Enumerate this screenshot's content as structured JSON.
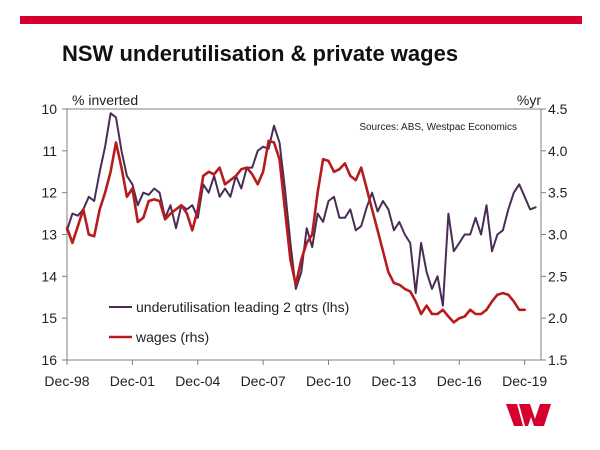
{
  "header": {
    "title": "NSW underutilisation & private wages"
  },
  "brand": {
    "logo": "westpac-w-logo",
    "color": "#d5002b"
  },
  "chart_data": {
    "type": "line",
    "title": "NSW underutilisation & private wages",
    "source": "Sources: ABS, Westpac Economics",
    "y_left": {
      "label": "% inverted",
      "range": [
        10,
        16
      ],
      "inverted": true,
      "ticks": [
        10,
        11,
        12,
        13,
        14,
        15,
        16
      ]
    },
    "y_right": {
      "label": "%yr",
      "range": [
        1.5,
        4.5
      ],
      "ticks": [
        "1.5",
        "2.0",
        "2.5",
        "3.0",
        "3.5",
        "4.0",
        "4.5"
      ]
    },
    "x_range": [
      1998.92,
      2020.67
    ],
    "x_ticks": [
      {
        "label": "Dec-98",
        "value": 1998.92
      },
      {
        "label": "Dec-01",
        "value": 2001.92
      },
      {
        "label": "Dec-04",
        "value": 2004.92
      },
      {
        "label": "Dec-07",
        "value": 2007.92
      },
      {
        "label": "Dec-10",
        "value": 2010.92
      },
      {
        "label": "Dec-13",
        "value": 2013.92
      },
      {
        "label": "Dec-16",
        "value": 2016.92
      },
      {
        "label": "Dec-19",
        "value": 2019.92
      }
    ],
    "grid": false,
    "legend_position": "bottom-left",
    "series": [
      {
        "name": "underutilisation leading 2 qtrs (lhs)",
        "axis": "left",
        "color": "#4a2d55",
        "points": [
          [
            1998.92,
            12.9
          ],
          [
            1999.17,
            12.5
          ],
          [
            1999.42,
            12.55
          ],
          [
            1999.67,
            12.4
          ],
          [
            1999.92,
            12.1
          ],
          [
            2000.17,
            12.2
          ],
          [
            2000.42,
            11.5
          ],
          [
            2000.67,
            10.9
          ],
          [
            2000.92,
            10.1
          ],
          [
            2001.17,
            10.2
          ],
          [
            2001.42,
            11.0
          ],
          [
            2001.67,
            11.6
          ],
          [
            2001.92,
            11.8
          ],
          [
            2002.17,
            12.3
          ],
          [
            2002.42,
            12.0
          ],
          [
            2002.67,
            12.05
          ],
          [
            2002.92,
            11.9
          ],
          [
            2003.17,
            12.0
          ],
          [
            2003.42,
            12.6
          ],
          [
            2003.67,
            12.3
          ],
          [
            2003.92,
            12.85
          ],
          [
            2004.17,
            12.3
          ],
          [
            2004.42,
            12.4
          ],
          [
            2004.67,
            12.3
          ],
          [
            2004.92,
            12.6
          ],
          [
            2005.17,
            11.8
          ],
          [
            2005.42,
            12.0
          ],
          [
            2005.67,
            11.6
          ],
          [
            2005.92,
            12.1
          ],
          [
            2006.17,
            11.9
          ],
          [
            2006.42,
            12.1
          ],
          [
            2006.67,
            11.6
          ],
          [
            2006.92,
            11.9
          ],
          [
            2007.17,
            11.4
          ],
          [
            2007.42,
            11.4
          ],
          [
            2007.67,
            11.0
          ],
          [
            2007.92,
            10.9
          ],
          [
            2008.17,
            10.95
          ],
          [
            2008.42,
            10.4
          ],
          [
            2008.67,
            10.8
          ],
          [
            2008.92,
            11.9
          ],
          [
            2009.17,
            13.2
          ],
          [
            2009.42,
            14.3
          ],
          [
            2009.67,
            13.9
          ],
          [
            2009.92,
            12.85
          ],
          [
            2010.17,
            13.3
          ],
          [
            2010.42,
            12.5
          ],
          [
            2010.67,
            12.7
          ],
          [
            2010.92,
            12.2
          ],
          [
            2011.17,
            12.1
          ],
          [
            2011.42,
            12.6
          ],
          [
            2011.67,
            12.6
          ],
          [
            2011.92,
            12.4
          ],
          [
            2012.17,
            12.9
          ],
          [
            2012.42,
            12.8
          ],
          [
            2012.67,
            12.35
          ],
          [
            2012.92,
            12.0
          ],
          [
            2013.17,
            12.45
          ],
          [
            2013.42,
            12.2
          ],
          [
            2013.67,
            12.4
          ],
          [
            2013.92,
            12.9
          ],
          [
            2014.17,
            12.7
          ],
          [
            2014.42,
            13.0
          ],
          [
            2014.67,
            13.2
          ],
          [
            2014.92,
            14.4
          ],
          [
            2015.17,
            13.2
          ],
          [
            2015.42,
            13.9
          ],
          [
            2015.67,
            14.3
          ],
          [
            2015.92,
            14.0
          ],
          [
            2016.17,
            14.7
          ],
          [
            2016.42,
            12.5
          ],
          [
            2016.67,
            13.4
          ],
          [
            2016.92,
            13.2
          ],
          [
            2017.17,
            13.0
          ],
          [
            2017.42,
            13.0
          ],
          [
            2017.67,
            12.6
          ],
          [
            2017.92,
            13.0
          ],
          [
            2018.17,
            12.3
          ],
          [
            2018.42,
            13.4
          ],
          [
            2018.67,
            13.0
          ],
          [
            2018.92,
            12.9
          ],
          [
            2019.17,
            12.4
          ],
          [
            2019.42,
            12.0
          ],
          [
            2019.67,
            11.8
          ],
          [
            2019.92,
            12.1
          ],
          [
            2020.17,
            12.4
          ],
          [
            2020.42,
            12.35
          ]
        ]
      },
      {
        "name": "wages (rhs)",
        "axis": "right",
        "color": "#b71c1c",
        "points": [
          [
            1998.92,
            3.08
          ],
          [
            1999.17,
            2.9
          ],
          [
            1999.42,
            3.1
          ],
          [
            1999.67,
            3.3
          ],
          [
            1999.92,
            3.0
          ],
          [
            2000.17,
            2.98
          ],
          [
            2000.42,
            3.3
          ],
          [
            2000.67,
            3.5
          ],
          [
            2000.92,
            3.75
          ],
          [
            2001.17,
            4.1
          ],
          [
            2001.42,
            3.8
          ],
          [
            2001.67,
            3.45
          ],
          [
            2001.92,
            3.55
          ],
          [
            2002.17,
            3.15
          ],
          [
            2002.42,
            3.2
          ],
          [
            2002.67,
            3.4
          ],
          [
            2002.92,
            3.42
          ],
          [
            2003.17,
            3.4
          ],
          [
            2003.42,
            3.18
          ],
          [
            2003.67,
            3.25
          ],
          [
            2003.92,
            3.3
          ],
          [
            2004.17,
            3.35
          ],
          [
            2004.42,
            3.25
          ],
          [
            2004.67,
            3.05
          ],
          [
            2004.92,
            3.3
          ],
          [
            2005.17,
            3.7
          ],
          [
            2005.42,
            3.75
          ],
          [
            2005.67,
            3.72
          ],
          [
            2005.92,
            3.8
          ],
          [
            2006.17,
            3.6
          ],
          [
            2006.42,
            3.65
          ],
          [
            2006.67,
            3.7
          ],
          [
            2006.92,
            3.78
          ],
          [
            2007.17,
            3.8
          ],
          [
            2007.42,
            3.72
          ],
          [
            2007.67,
            3.6
          ],
          [
            2007.92,
            3.75
          ],
          [
            2008.17,
            4.12
          ],
          [
            2008.42,
            4.1
          ],
          [
            2008.67,
            3.9
          ],
          [
            2008.92,
            3.3
          ],
          [
            2009.17,
            2.7
          ],
          [
            2009.42,
            2.4
          ],
          [
            2009.67,
            2.7
          ],
          [
            2009.92,
            2.9
          ],
          [
            2010.17,
            3.0
          ],
          [
            2010.42,
            3.5
          ],
          [
            2010.67,
            3.9
          ],
          [
            2010.92,
            3.88
          ],
          [
            2011.17,
            3.75
          ],
          [
            2011.42,
            3.78
          ],
          [
            2011.67,
            3.85
          ],
          [
            2011.92,
            3.7
          ],
          [
            2012.17,
            3.65
          ],
          [
            2012.42,
            3.8
          ],
          [
            2012.67,
            3.55
          ],
          [
            2012.92,
            3.3
          ],
          [
            2013.17,
            3.05
          ],
          [
            2013.42,
            2.8
          ],
          [
            2013.67,
            2.55
          ],
          [
            2013.92,
            2.42
          ],
          [
            2014.17,
            2.4
          ],
          [
            2014.42,
            2.35
          ],
          [
            2014.67,
            2.32
          ],
          [
            2014.92,
            2.2
          ],
          [
            2015.17,
            2.05
          ],
          [
            2015.42,
            2.15
          ],
          [
            2015.67,
            2.05
          ],
          [
            2015.92,
            2.05
          ],
          [
            2016.17,
            2.1
          ],
          [
            2016.42,
            2.02
          ],
          [
            2016.67,
            1.95
          ],
          [
            2016.92,
            2.0
          ],
          [
            2017.17,
            2.02
          ],
          [
            2017.42,
            2.1
          ],
          [
            2017.67,
            2.05
          ],
          [
            2017.92,
            2.05
          ],
          [
            2018.17,
            2.1
          ],
          [
            2018.42,
            2.2
          ],
          [
            2018.67,
            2.28
          ],
          [
            2018.92,
            2.3
          ],
          [
            2019.17,
            2.28
          ],
          [
            2019.42,
            2.2
          ],
          [
            2019.67,
            2.1
          ],
          [
            2019.92,
            2.1
          ]
        ]
      }
    ]
  }
}
